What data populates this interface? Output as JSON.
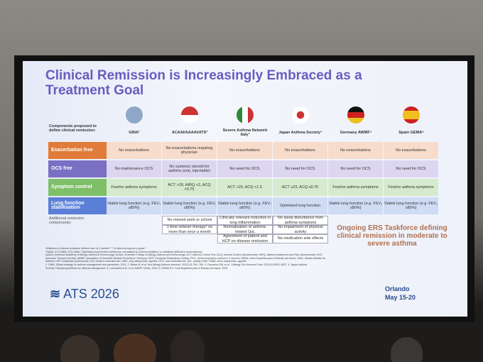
{
  "slide": {
    "title": "Clinical Remission is Increasingly Embraced as a Treatment Goal",
    "table": {
      "corner": "Components proposed to define clinical remission:",
      "columns": [
        "GINA¹",
        "ACAAI/AAAAI/ATS²",
        "Severe Asthma Network Italy³",
        "Japan Asthma Society⁴",
        "Germany AWMF⁵",
        "Spain GEMA⁶"
      ],
      "rows": [
        {
          "label": "Exacerbation free",
          "cells": [
            "No exacerbations",
            "No exacerbations requiring physician",
            "No exacerbations",
            "No exacerbations",
            "No exacerbations",
            "No exacerbations"
          ]
        },
        {
          "label": "OCS free",
          "cells": [
            "No maintenance OCS",
            "No systemic steroid for asthma (oral, injectable)",
            "No need for OCS",
            "No need for OCS",
            "No need for OCS",
            "No need for OCS"
          ]
        },
        {
          "label": "Symptom control",
          "cells": [
            "Few/no asthma symptoms",
            "ACT >20, AIRQ <2, ACQ <0.75",
            "ACT >20, ACQ <1.5",
            "ACT ≥23, ACQ ≤0.75",
            "Few/no asthma symptoms",
            "Few/no asthma symptoms"
          ]
        },
        {
          "label": "Lung function stabilisation",
          "cells": [
            "Stable lung function (e.g. FEV₁ ≥80%)",
            "Stable lung function (e.g. FEV₁ ≥80%)",
            "Stable lung function (e.g. FEV₁ ≥80%)",
            "Optimised lung function",
            "Stable lung function (e.g. FEV₁ ≥80%)",
            "Stable lung function (e.g. FEV₁ ≥80%)"
          ]
        }
      ],
      "additional": {
        "label": "Additional remission components:",
        "columns": [
          [
            "No missed work or school",
            "1-time reliever therapy* no more than once a month"
          ],
          [
            "Clinically relevant reduction in lung inflammation",
            "Normalisation of asthma-related QoL",
            "Agreement of patient and HCP on disease remission"
          ],
          [
            "No sleep disturbance from asthma symptoms",
            "No impairment of physical activity",
            "No medication side effects"
          ]
        ]
      }
    },
    "callout": "Ongoing ERS Taskforce defining clinical remission in moderate to severe asthma",
    "footnotes": [
      "Definitions of clinical remission defined over ≥12 months ¹⁻⁶ or listed as long-term goals.¹",
      "*SABA, ICS-SABA, ICS-LABA. ¹Optimised lung function defined as: normalised (LLN/bronchodilator) or stabilised (difficult-to-treat asthma).",
      "AAAAI, American Academy of Allergy, Asthma & Immunology; ACAAI, American College of Allergy, Asthma and Immunology; ACT, Asthma Control Test; ACQ, Asthma Control Questionnaire; AIRQ, Asthma Impairment and Risk Questionnaire; ATS,",
      "American Thoracic Society; AWMF, Association of Scientific Medical Societies in Germany; ERS, European Respiratory Society; FEV₁, forced expiratory volume in 1 second; GEMA, Guía Española para el Manejo del Asma; GINA, Global Initiative for",
      "Asthma; HCP, healthcare professional; ICS, inhaled corticosteroid; LABA, long-acting beta₂ agonist; OCS, oral corticosteroid; QoL, quality of life; SABA, short-acting beta₂ agonist.",
      "1. GINA. Global strategy for asthma management and prevention, 2024. 2. Blaiss M, et al. Ann Allergy Asthma Immunol. 2023;131:782–785. 3. Canonica GW, et al. J Allergy Clin Immunol Pract. 2023;11:3629–3637. 4. Japan Asthma",
      "Society. Practical guidelines for asthma management. 5. Lommatzsch M, et al. AWMF Online. 2025. 6. GEMA 5.5. Guía Española para el Manejo del Asma. 2025."
    ],
    "logo": "ATS 2026",
    "location": "Orlando",
    "dates": "May 15-20"
  }
}
